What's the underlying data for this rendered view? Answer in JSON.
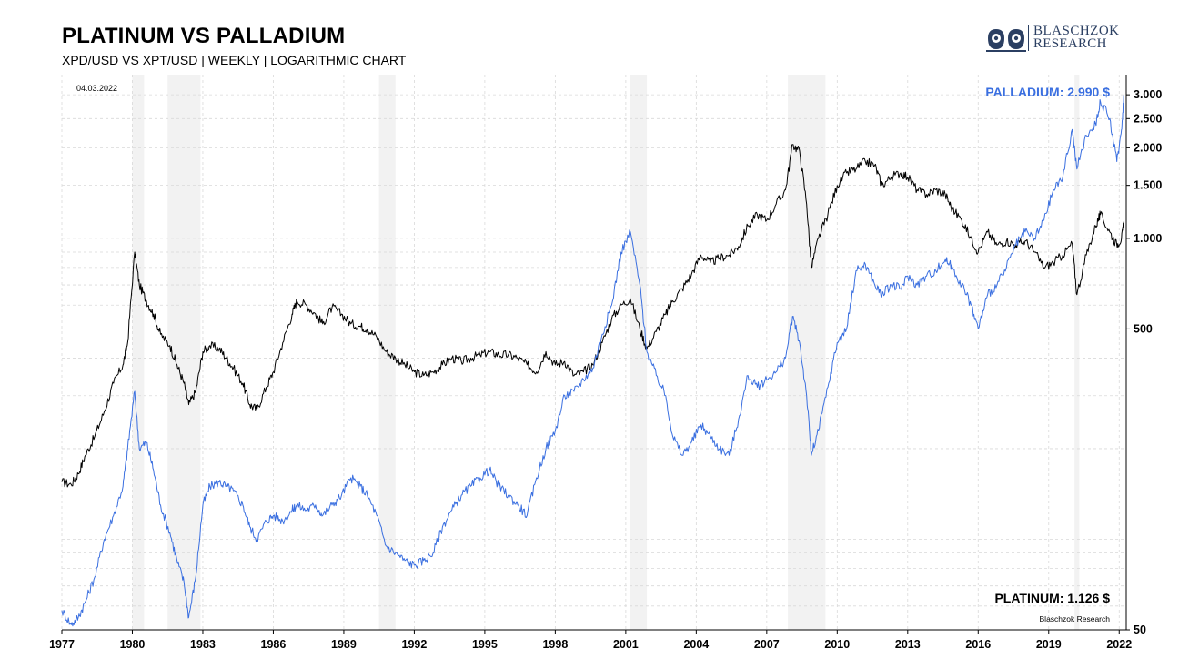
{
  "header": {
    "title": "PLATINUM VS PALLADIUM",
    "subtitle": "XPD/USD VS XPT/USD | WEEKLY | LOGARITHMIC CHART"
  },
  "logo": {
    "line1": "BLASCHZOK",
    "line2": "RESEARCH",
    "icon": "owls-logo-icon",
    "color": "#2b3f62"
  },
  "chart_data": {
    "type": "line",
    "date_label": "04.03.2022",
    "source": "Blaschzok Research",
    "y_scale": "log",
    "ylim": [
      50,
      3500
    ],
    "xlim": [
      1977,
      2022.3
    ],
    "grid": true,
    "x_ticks": [
      "1977",
      "1980",
      "1983",
      "1986",
      "1989",
      "1992",
      "1995",
      "1998",
      "2001",
      "2004",
      "2007",
      "2010",
      "2013",
      "2016",
      "2019",
      "2022"
    ],
    "y_ticks": [
      {
        "value": 3000,
        "label": "3.000"
      },
      {
        "value": 2500,
        "label": "2.500"
      },
      {
        "value": 2000,
        "label": "2.000"
      },
      {
        "value": 1500,
        "label": "1.500"
      },
      {
        "value": 1000,
        "label": "1.000"
      },
      {
        "value": 500,
        "label": "500"
      },
      {
        "value": 50,
        "label": "50"
      }
    ],
    "recession_bands": [
      [
        1980.0,
        1980.5
      ],
      [
        1981.5,
        1982.9
      ],
      [
        1990.5,
        1991.2
      ],
      [
        2001.2,
        2001.9
      ],
      [
        2007.9,
        2009.5
      ],
      [
        2020.1,
        2020.3
      ]
    ],
    "series": [
      {
        "name": "PLATINUM",
        "color": "#000000",
        "last_label": "PLATINUM: 1.126 $",
        "points": [
          [
            1977.0,
            155
          ],
          [
            1977.4,
            152
          ],
          [
            1977.7,
            165
          ],
          [
            1978.0,
            190
          ],
          [
            1978.4,
            220
          ],
          [
            1978.8,
            265
          ],
          [
            1979.2,
            330
          ],
          [
            1979.6,
            380
          ],
          [
            1979.8,
            450
          ],
          [
            1980.1,
            900
          ],
          [
            1980.3,
            700
          ],
          [
            1980.6,
            620
          ],
          [
            1980.9,
            560
          ],
          [
            1981.2,
            480
          ],
          [
            1981.6,
            440
          ],
          [
            1981.9,
            380
          ],
          [
            1982.2,
            330
          ],
          [
            1982.4,
            280
          ],
          [
            1982.7,
            310
          ],
          [
            1983.0,
            420
          ],
          [
            1983.3,
            440
          ],
          [
            1983.7,
            430
          ],
          [
            1984.0,
            400
          ],
          [
            1984.3,
            370
          ],
          [
            1984.7,
            330
          ],
          [
            1985.0,
            280
          ],
          [
            1985.3,
            270
          ],
          [
            1985.7,
            320
          ],
          [
            1986.0,
            360
          ],
          [
            1986.4,
            450
          ],
          [
            1986.8,
            560
          ],
          [
            1987.0,
            620
          ],
          [
            1987.4,
            600
          ],
          [
            1987.8,
            560
          ],
          [
            1988.1,
            520
          ],
          [
            1988.5,
            590
          ],
          [
            1988.9,
            560
          ],
          [
            1989.3,
            520
          ],
          [
            1989.7,
            510
          ],
          [
            1990.0,
            500
          ],
          [
            1990.4,
            470
          ],
          [
            1990.8,
            420
          ],
          [
            1991.2,
            400
          ],
          [
            1991.6,
            380
          ],
          [
            1992.0,
            360
          ],
          [
            1992.4,
            350
          ],
          [
            1992.8,
            360
          ],
          [
            1993.2,
            380
          ],
          [
            1993.6,
            400
          ],
          [
            1994.0,
            390
          ],
          [
            1994.4,
            400
          ],
          [
            1994.8,
            410
          ],
          [
            1995.2,
            420
          ],
          [
            1995.6,
            410
          ],
          [
            1996.0,
            410
          ],
          [
            1996.4,
            400
          ],
          [
            1996.8,
            380
          ],
          [
            1997.2,
            360
          ],
          [
            1997.6,
            420
          ],
          [
            1998.0,
            380
          ],
          [
            1998.4,
            390
          ],
          [
            1998.8,
            350
          ],
          [
            1999.2,
            360
          ],
          [
            1999.6,
            380
          ],
          [
            2000.0,
            450
          ],
          [
            2000.4,
            540
          ],
          [
            2000.8,
            600
          ],
          [
            2001.2,
            630
          ],
          [
            2001.6,
            500
          ],
          [
            2001.9,
            430
          ],
          [
            2002.3,
            490
          ],
          [
            2002.7,
            560
          ],
          [
            2003.0,
            620
          ],
          [
            2003.4,
            680
          ],
          [
            2003.8,
            760
          ],
          [
            2004.2,
            880
          ],
          [
            2004.6,
            830
          ],
          [
            2005.0,
            860
          ],
          [
            2005.4,
            880
          ],
          [
            2005.8,
            940
          ],
          [
            2006.2,
            1100
          ],
          [
            2006.6,
            1200
          ],
          [
            2007.0,
            1150
          ],
          [
            2007.4,
            1300
          ],
          [
            2007.8,
            1450
          ],
          [
            2008.1,
            2050
          ],
          [
            2008.4,
            1950
          ],
          [
            2008.7,
            1300
          ],
          [
            2008.9,
            800
          ],
          [
            2009.2,
            1000
          ],
          [
            2009.6,
            1200
          ],
          [
            2010.0,
            1500
          ],
          [
            2010.4,
            1650
          ],
          [
            2010.8,
            1700
          ],
          [
            2011.2,
            1800
          ],
          [
            2011.6,
            1750
          ],
          [
            2011.9,
            1500
          ],
          [
            2012.3,
            1600
          ],
          [
            2012.7,
            1650
          ],
          [
            2013.0,
            1600
          ],
          [
            2013.4,
            1450
          ],
          [
            2013.8,
            1400
          ],
          [
            2014.2,
            1450
          ],
          [
            2014.6,
            1400
          ],
          [
            2014.9,
            1250
          ],
          [
            2015.3,
            1150
          ],
          [
            2015.7,
            1000
          ],
          [
            2016.0,
            900
          ],
          [
            2016.4,
            1050
          ],
          [
            2016.8,
            950
          ],
          [
            2017.2,
            980
          ],
          [
            2017.6,
            950
          ],
          [
            2018.0,
            980
          ],
          [
            2018.4,
            900
          ],
          [
            2018.8,
            800
          ],
          [
            2019.2,
            830
          ],
          [
            2019.6,
            880
          ],
          [
            2020.0,
            960
          ],
          [
            2020.2,
            650
          ],
          [
            2020.6,
            880
          ],
          [
            2021.0,
            1100
          ],
          [
            2021.2,
            1200
          ],
          [
            2021.6,
            1050
          ],
          [
            2021.9,
            950
          ],
          [
            2022.1,
            1000
          ],
          [
            2022.2,
            1126
          ]
        ]
      },
      {
        "name": "PALLADIUM",
        "color": "#3a6fe0",
        "last_label": "PALLADIUM: 2.990 $",
        "points": [
          [
            1977.0,
            58
          ],
          [
            1977.4,
            52
          ],
          [
            1977.7,
            55
          ],
          [
            1978.0,
            62
          ],
          [
            1978.4,
            75
          ],
          [
            1978.8,
            100
          ],
          [
            1979.2,
            120
          ],
          [
            1979.6,
            150
          ],
          [
            1979.8,
            200
          ],
          [
            1980.1,
            310
          ],
          [
            1980.3,
            200
          ],
          [
            1980.6,
            210
          ],
          [
            1980.9,
            170
          ],
          [
            1981.2,
            130
          ],
          [
            1981.6,
            105
          ],
          [
            1981.9,
            85
          ],
          [
            1982.2,
            72
          ],
          [
            1982.4,
            55
          ],
          [
            1982.7,
            75
          ],
          [
            1983.0,
            130
          ],
          [
            1983.3,
            150
          ],
          [
            1983.7,
            155
          ],
          [
            1984.0,
            150
          ],
          [
            1984.3,
            145
          ],
          [
            1984.7,
            130
          ],
          [
            1985.0,
            110
          ],
          [
            1985.3,
            100
          ],
          [
            1985.7,
            115
          ],
          [
            1986.0,
            120
          ],
          [
            1986.4,
            115
          ],
          [
            1986.8,
            125
          ],
          [
            1987.0,
            130
          ],
          [
            1987.4,
            125
          ],
          [
            1987.8,
            130
          ],
          [
            1988.1,
            120
          ],
          [
            1988.5,
            130
          ],
          [
            1988.9,
            140
          ],
          [
            1989.3,
            160
          ],
          [
            1989.7,
            150
          ],
          [
            1990.0,
            140
          ],
          [
            1990.4,
            120
          ],
          [
            1990.8,
            95
          ],
          [
            1991.2,
            90
          ],
          [
            1991.6,
            85
          ],
          [
            1992.0,
            82
          ],
          [
            1992.4,
            85
          ],
          [
            1992.8,
            90
          ],
          [
            1993.2,
            110
          ],
          [
            1993.6,
            125
          ],
          [
            1994.0,
            140
          ],
          [
            1994.4,
            150
          ],
          [
            1994.8,
            160
          ],
          [
            1995.2,
            170
          ],
          [
            1995.6,
            150
          ],
          [
            1996.0,
            140
          ],
          [
            1996.4,
            130
          ],
          [
            1996.8,
            120
          ],
          [
            1997.2,
            160
          ],
          [
            1997.6,
            200
          ],
          [
            1998.0,
            230
          ],
          [
            1998.4,
            300
          ],
          [
            1998.8,
            310
          ],
          [
            1999.2,
            340
          ],
          [
            1999.6,
            370
          ],
          [
            2000.0,
            480
          ],
          [
            2000.4,
            600
          ],
          [
            2000.8,
            900
          ],
          [
            2001.2,
            1050
          ],
          [
            2001.6,
            700
          ],
          [
            2001.9,
            420
          ],
          [
            2002.3,
            350
          ],
          [
            2002.7,
            300
          ],
          [
            2003.0,
            220
          ],
          [
            2003.4,
            190
          ],
          [
            2003.8,
            210
          ],
          [
            2004.2,
            240
          ],
          [
            2004.6,
            220
          ],
          [
            2005.0,
            200
          ],
          [
            2005.4,
            190
          ],
          [
            2005.8,
            250
          ],
          [
            2006.2,
            350
          ],
          [
            2006.6,
            320
          ],
          [
            2007.0,
            340
          ],
          [
            2007.4,
            360
          ],
          [
            2007.8,
            400
          ],
          [
            2008.1,
            550
          ],
          [
            2008.4,
            450
          ],
          [
            2008.7,
            300
          ],
          [
            2008.9,
            190
          ],
          [
            2009.2,
            230
          ],
          [
            2009.6,
            320
          ],
          [
            2010.0,
            450
          ],
          [
            2010.4,
            500
          ],
          [
            2010.8,
            780
          ],
          [
            2011.2,
            820
          ],
          [
            2011.6,
            700
          ],
          [
            2011.9,
            650
          ],
          [
            2012.3,
            700
          ],
          [
            2012.7,
            680
          ],
          [
            2013.0,
            750
          ],
          [
            2013.4,
            700
          ],
          [
            2013.8,
            750
          ],
          [
            2014.2,
            780
          ],
          [
            2014.6,
            850
          ],
          [
            2014.9,
            800
          ],
          [
            2015.3,
            700
          ],
          [
            2015.7,
            600
          ],
          [
            2016.0,
            500
          ],
          [
            2016.4,
            650
          ],
          [
            2016.8,
            700
          ],
          [
            2017.2,
            800
          ],
          [
            2017.6,
            950
          ],
          [
            2018.0,
            1050
          ],
          [
            2018.4,
            1000
          ],
          [
            2018.8,
            1150
          ],
          [
            2019.2,
            1450
          ],
          [
            2019.6,
            1600
          ],
          [
            2020.0,
            2300
          ],
          [
            2020.2,
            1700
          ],
          [
            2020.6,
            2200
          ],
          [
            2021.0,
            2400
          ],
          [
            2021.2,
            2850
          ],
          [
            2021.6,
            2500
          ],
          [
            2021.9,
            1800
          ],
          [
            2022.1,
            2300
          ],
          [
            2022.2,
            2990
          ]
        ]
      }
    ]
  }
}
